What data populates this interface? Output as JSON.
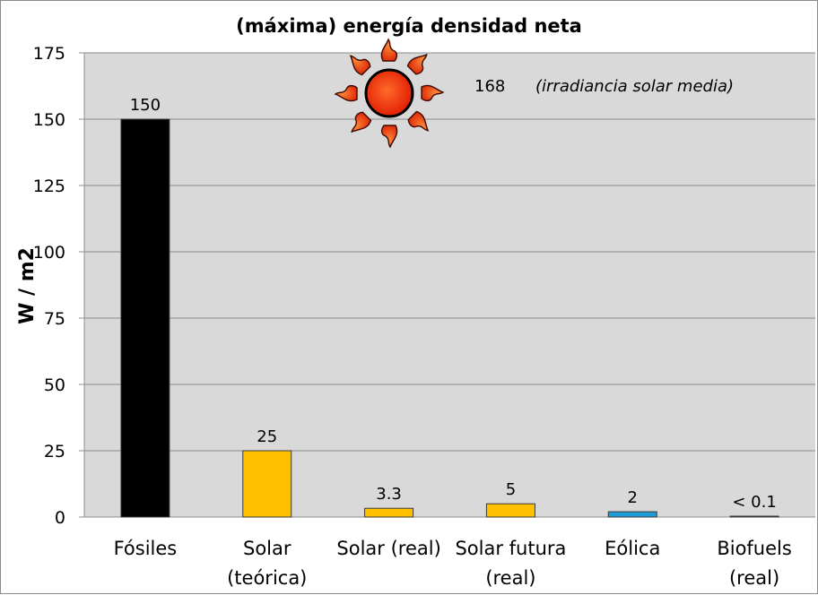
{
  "chart_data": {
    "type": "bar",
    "title": "(máxima) energía densidad neta",
    "ylabel": "W / m2",
    "xlabel": "",
    "ylim": [
      0,
      175
    ],
    "yticks": [
      0,
      25,
      50,
      75,
      100,
      125,
      150,
      175
    ],
    "grid": true,
    "categories": [
      [
        "Fósiles"
      ],
      [
        "Solar",
        "(teórica)"
      ],
      [
        "Solar (real)"
      ],
      [
        "Solar futura",
        "(real)"
      ],
      [
        "Eólica"
      ],
      [
        "Biofuels",
        "(real)"
      ]
    ],
    "values": [
      150,
      25,
      3.3,
      5,
      2,
      0.1
    ],
    "value_labels": [
      "150",
      "25",
      "3.3",
      "5",
      "2",
      "< 0.1"
    ],
    "colors": [
      "#000000",
      "#ffc000",
      "#ffc000",
      "#ffc000",
      "#1f9bd7",
      "#404040"
    ],
    "annotation": {
      "value": "168",
      "text": "(irradiancia solar media)",
      "icon": "sun-icon"
    },
    "plot_background": "#d9d9d9",
    "gridline_color": "#8c8c8c"
  }
}
